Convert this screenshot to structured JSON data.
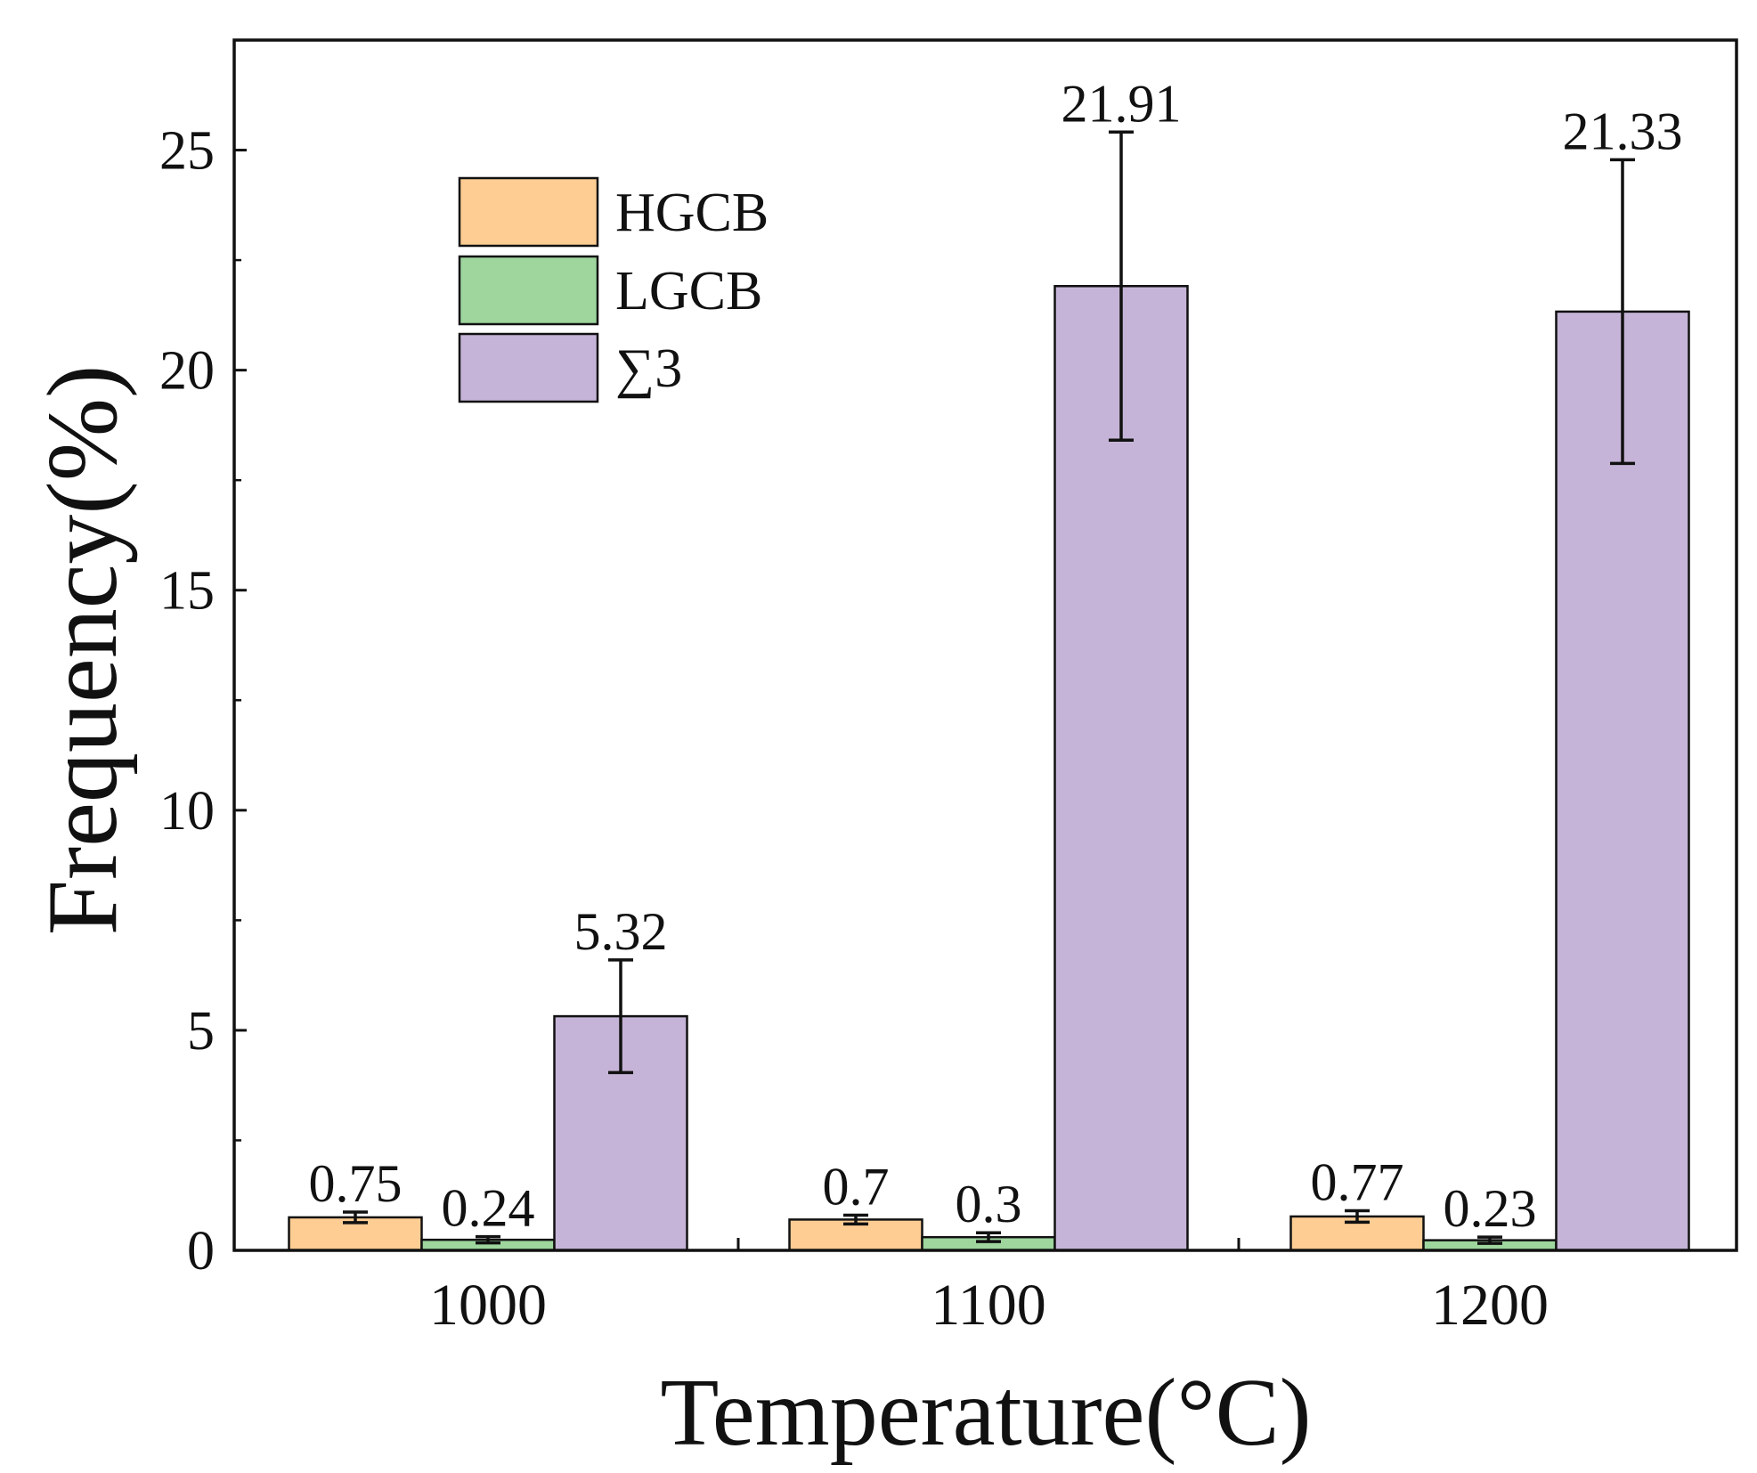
{
  "chart_data": {
    "type": "bar",
    "title": "",
    "xlabel": "Temperature(°C)",
    "ylabel": "Frequency(%)",
    "categories": [
      "1000",
      "1100",
      "1200"
    ],
    "ylim": [
      0,
      27.5
    ],
    "yticks": [
      0,
      5,
      10,
      15,
      20,
      25
    ],
    "legend_position": "top-left",
    "grid": false,
    "series": [
      {
        "name": "HGCB",
        "color": "#FDCD93",
        "values": [
          0.75,
          0.7,
          0.77
        ],
        "labels": [
          "0.75",
          "0.7",
          "0.77"
        ],
        "errors": [
          0.12,
          0.1,
          0.13
        ]
      },
      {
        "name": "LGCB",
        "color": "#9ED69E",
        "values": [
          0.24,
          0.3,
          0.23
        ],
        "labels": [
          "0.24",
          "0.3",
          "0.23"
        ],
        "errors": [
          0.07,
          0.1,
          0.07
        ]
      },
      {
        "name": "∑3",
        "color": "#C5B4D7",
        "values": [
          5.32,
          21.91,
          21.33
        ],
        "labels": [
          "5.32",
          "21.91",
          "21.33"
        ],
        "errors": [
          1.28,
          3.5,
          3.45
        ]
      }
    ]
  }
}
